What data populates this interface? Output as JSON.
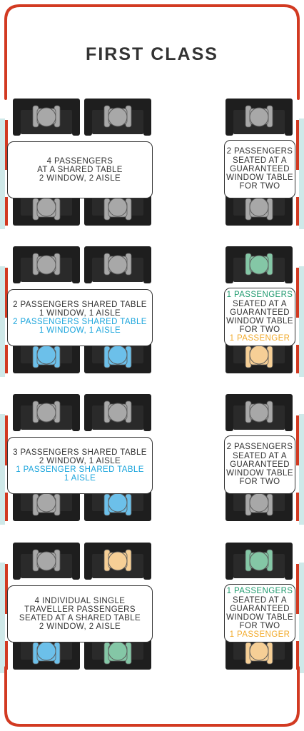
{
  "title": "FIRST CLASS",
  "colors": {
    "frame": "#d23a22",
    "window_strip": "#cfe9e9",
    "seat": "#1e1e1e",
    "passenger_grey": "#a8a8a8",
    "passenger_blue": "#6cc0ea",
    "passenger_green": "#84c7a6",
    "passenger_peach": "#f6cf96",
    "text_blue": "#1ba5dc",
    "text_green": "#1f9a6e",
    "text_orange": "#f2aa2b"
  },
  "bays": [
    {
      "left_table": [
        {
          "text": "4 PASSENGERS",
          "color": "default"
        },
        {
          "text": "AT A SHARED TABLE",
          "color": "default"
        },
        {
          "text": "2 WINDOW, 2 AISLE",
          "color": "default"
        }
      ],
      "right_table": [
        {
          "text": "2 PASSENGERS",
          "color": "default"
        },
        {
          "text": "SEATED AT A",
          "color": "default"
        },
        {
          "text": "GUARANTEED",
          "color": "default"
        },
        {
          "text": "WINDOW TABLE",
          "color": "default"
        },
        {
          "text": "FOR TWO",
          "color": "default"
        }
      ],
      "seats": {
        "left_top": [
          "grey",
          "grey"
        ],
        "left_bottom": [
          "grey",
          "grey"
        ],
        "right_top": "grey",
        "right_bottom": "grey"
      }
    },
    {
      "left_table": [
        {
          "text": "2 PASSENGERS SHARED TABLE",
          "color": "default"
        },
        {
          "text": "1 WINDOW, 1 AISLE",
          "color": "default"
        },
        {
          "text": "2 PASSENGERS SHARED TABLE",
          "color": "blue"
        },
        {
          "text": "1 WINDOW, 1 AISLE",
          "color": "blue"
        }
      ],
      "right_table": [
        {
          "text": "1 PASSENGERS",
          "color": "green"
        },
        {
          "text": "SEATED AT A",
          "color": "default"
        },
        {
          "text": "GUARANTEED",
          "color": "default"
        },
        {
          "text": "WINDOW TABLE",
          "color": "default"
        },
        {
          "text": "FOR TWO",
          "color": "default"
        },
        {
          "text": "1 PASSENGER",
          "color": "orange"
        }
      ],
      "seats": {
        "left_top": [
          "grey",
          "grey"
        ],
        "left_bottom": [
          "blue",
          "blue"
        ],
        "right_top": "green",
        "right_bottom": "peach"
      }
    },
    {
      "left_table": [
        {
          "text": "3 PASSENGERS SHARED TABLE",
          "color": "default"
        },
        {
          "text": "2 WINDOW, 1 AISLE",
          "color": "default"
        },
        {
          "text": "1 PASSENGER SHARED TABLE",
          "color": "blue"
        },
        {
          "text": "1 AISLE",
          "color": "blue"
        }
      ],
      "right_table": [
        {
          "text": "2 PASSENGERS",
          "color": "default"
        },
        {
          "text": "SEATED AT A",
          "color": "default"
        },
        {
          "text": "GUARANTEED",
          "color": "default"
        },
        {
          "text": "WINDOW TABLE",
          "color": "default"
        },
        {
          "text": "FOR TWO",
          "color": "default"
        }
      ],
      "seats": {
        "left_top": [
          "grey",
          "grey"
        ],
        "left_bottom": [
          "grey",
          "blue"
        ],
        "right_top": "grey",
        "right_bottom": "grey"
      }
    },
    {
      "left_table": [
        {
          "text": "4 INDIVIDUAL SINGLE",
          "color": "default"
        },
        {
          "text": "TRAVELLER PASSENGERS",
          "color": "default"
        },
        {
          "text": "SEATED AT A  SHARED TABLE",
          "color": "default"
        },
        {
          "text": "2 WINDOW, 2 AISLE",
          "color": "default"
        }
      ],
      "right_table": [
        {
          "text": "1 PASSENGERS",
          "color": "green"
        },
        {
          "text": "SEATED AT A",
          "color": "default"
        },
        {
          "text": "GUARANTEED",
          "color": "default"
        },
        {
          "text": "WINDOW TABLE",
          "color": "default"
        },
        {
          "text": "FOR TWO",
          "color": "default"
        },
        {
          "text": "1 PASSENGER",
          "color": "orange"
        }
      ],
      "seats": {
        "left_top": [
          "grey",
          "peach"
        ],
        "left_bottom": [
          "blue",
          "green"
        ],
        "right_top": "green",
        "right_bottom": "peach"
      }
    }
  ]
}
